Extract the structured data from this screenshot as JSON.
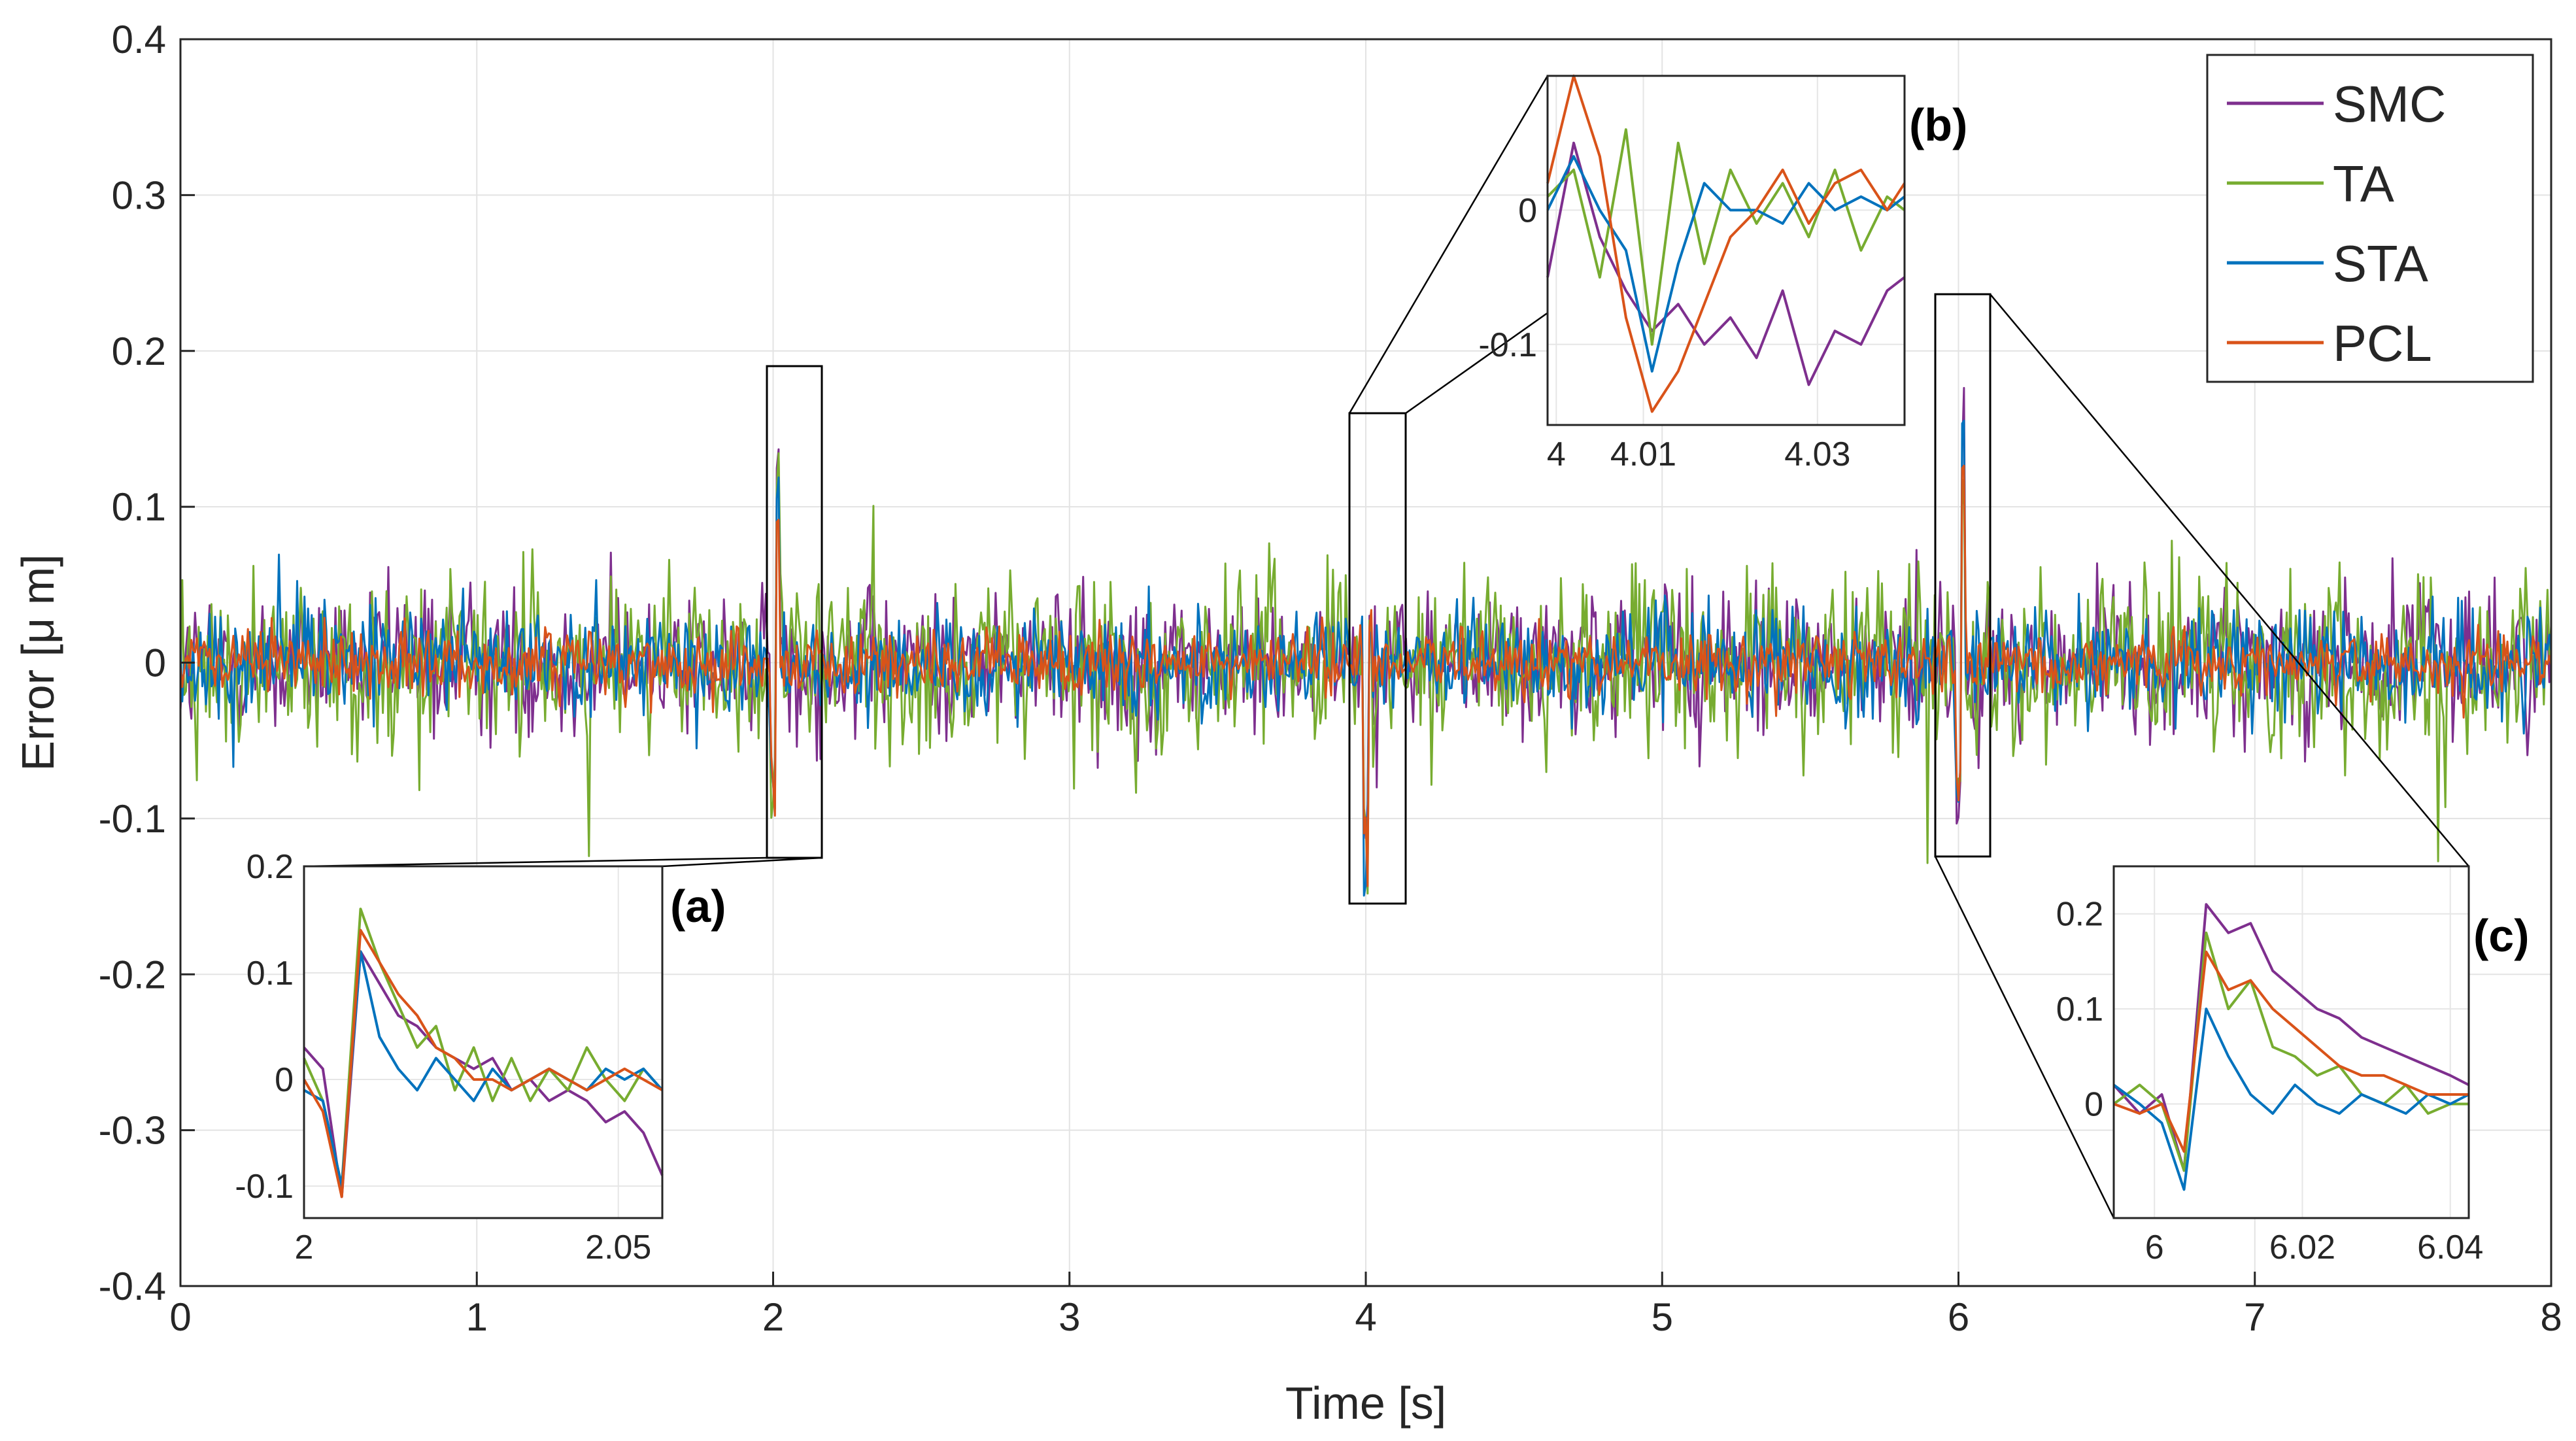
{
  "chart_data": {
    "type": "line",
    "title": "",
    "xlabel": "Time [s]",
    "ylabel": "Error [μ m]",
    "xlim": [
      0,
      8
    ],
    "ylim": [
      -0.4,
      0.4
    ],
    "xticks": [
      "0",
      "1",
      "2",
      "3",
      "4",
      "5",
      "6",
      "7",
      "8"
    ],
    "yticks": [
      "-0.4",
      "-0.3",
      "-0.2",
      "-0.1",
      "0",
      "0.1",
      "0.2",
      "0.3",
      "0.4"
    ],
    "grid": true,
    "legend_position": "top-right",
    "series": [
      {
        "name": "SMC",
        "color": "#7e2f8e",
        "noise_amplitude": 0.05
      },
      {
        "name": "TA",
        "color": "#77ac30",
        "noise_amplitude": 0.06
      },
      {
        "name": "STA",
        "color": "#0072bd",
        "noise_amplitude": 0.035
      },
      {
        "name": "PCL",
        "color": "#d95319",
        "noise_amplitude": 0.022
      }
    ],
    "events": [
      {
        "t": 2,
        "peak": 0.17,
        "trough": -0.1
      },
      {
        "t": 4,
        "peak": 0.04,
        "trough": -0.15
      },
      {
        "t": 6,
        "peak": 0.21,
        "trough": -0.11
      }
    ],
    "insets": [
      {
        "label": "(a)",
        "xlim": [
          2,
          2.057
        ],
        "ylim": [
          -0.13,
          0.2
        ],
        "xticks": [
          "2",
          "2.05"
        ],
        "yticks": [
          "0.2",
          "0.1",
          "0",
          "-0.1"
        ],
        "series": [
          {
            "name": "SMC",
            "x": [
              2.0,
              2.003,
              2.006,
              2.009,
              2.012,
              2.015,
              2.018,
              2.021,
              2.024,
              2.027,
              2.03,
              2.033,
              2.036,
              2.039,
              2.042,
              2.045,
              2.048,
              2.051,
              2.054,
              2.057
            ],
            "y": [
              0.03,
              0.01,
              -0.11,
              0.12,
              0.09,
              0.06,
              0.05,
              0.03,
              0.02,
              0.01,
              0.02,
              -0.01,
              0.0,
              -0.02,
              -0.01,
              -0.02,
              -0.04,
              -0.03,
              -0.05,
              -0.09
            ]
          },
          {
            "name": "TA",
            "x": [
              2.0,
              2.003,
              2.006,
              2.009,
              2.012,
              2.015,
              2.018,
              2.021,
              2.024,
              2.027,
              2.03,
              2.033,
              2.036,
              2.039,
              2.042,
              2.045,
              2.048,
              2.051,
              2.054,
              2.057
            ],
            "y": [
              0.02,
              -0.02,
              -0.1,
              0.16,
              0.11,
              0.07,
              0.03,
              0.05,
              -0.01,
              0.03,
              -0.02,
              0.02,
              -0.02,
              0.01,
              -0.01,
              0.03,
              0.0,
              -0.02,
              0.01,
              -0.01
            ]
          },
          {
            "name": "STA",
            "x": [
              2.0,
              2.003,
              2.006,
              2.009,
              2.012,
              2.015,
              2.018,
              2.021,
              2.024,
              2.027,
              2.03,
              2.033,
              2.036,
              2.039,
              2.042,
              2.045,
              2.048,
              2.051,
              2.054,
              2.057
            ],
            "y": [
              -0.01,
              -0.02,
              -0.1,
              0.12,
              0.04,
              0.01,
              -0.01,
              0.02,
              0.0,
              -0.02,
              0.01,
              -0.01,
              0.0,
              0.01,
              0.0,
              -0.01,
              0.01,
              0.0,
              0.01,
              -0.01
            ]
          },
          {
            "name": "PCL",
            "x": [
              2.0,
              2.003,
              2.006,
              2.009,
              2.012,
              2.015,
              2.018,
              2.021,
              2.024,
              2.027,
              2.03,
              2.033,
              2.036,
              2.039,
              2.042,
              2.045,
              2.048,
              2.051,
              2.054,
              2.057
            ],
            "y": [
              0.0,
              -0.03,
              -0.11,
              0.14,
              0.11,
              0.08,
              0.06,
              0.03,
              0.02,
              0.0,
              0.0,
              -0.01,
              0.0,
              0.01,
              0.0,
              -0.01,
              0.0,
              0.01,
              0.0,
              -0.01
            ]
          }
        ]
      },
      {
        "label": "(b)",
        "xlim": [
          3.999,
          4.04
        ],
        "ylim": [
          -0.16,
          0.1
        ],
        "xticks": [
          "4",
          "4.01",
          "4.03"
        ],
        "yticks": [
          "0",
          "-0.1"
        ],
        "series": [
          {
            "name": "SMC",
            "x": [
              3.999,
              4.002,
              4.005,
              4.008,
              4.011,
              4.014,
              4.017,
              4.02,
              4.023,
              4.026,
              4.029,
              4.032,
              4.035,
              4.038,
              4.04
            ],
            "y": [
              -0.05,
              0.05,
              -0.02,
              -0.06,
              -0.09,
              -0.07,
              -0.1,
              -0.08,
              -0.11,
              -0.06,
              -0.13,
              -0.09,
              -0.1,
              -0.06,
              -0.05
            ]
          },
          {
            "name": "TA",
            "x": [
              3.999,
              4.002,
              4.005,
              4.008,
              4.011,
              4.014,
              4.017,
              4.02,
              4.023,
              4.026,
              4.029,
              4.032,
              4.035,
              4.038,
              4.04
            ],
            "y": [
              0.01,
              0.03,
              -0.05,
              0.06,
              -0.1,
              0.05,
              -0.04,
              0.03,
              -0.01,
              0.02,
              -0.02,
              0.03,
              -0.03,
              0.01,
              0.0
            ]
          },
          {
            "name": "STA",
            "x": [
              3.999,
              4.002,
              4.005,
              4.008,
              4.011,
              4.014,
              4.017,
              4.02,
              4.023,
              4.026,
              4.029,
              4.032,
              4.035,
              4.038,
              4.04
            ],
            "y": [
              0.0,
              0.04,
              0.0,
              -0.03,
              -0.12,
              -0.04,
              0.02,
              0.0,
              0.0,
              -0.01,
              0.02,
              0.0,
              0.01,
              0.0,
              0.01
            ]
          },
          {
            "name": "PCL",
            "x": [
              3.999,
              4.002,
              4.005,
              4.008,
              4.011,
              4.014,
              4.017,
              4.02,
              4.023,
              4.026,
              4.029,
              4.032,
              4.035,
              4.038,
              4.04
            ],
            "y": [
              0.02,
              0.1,
              0.04,
              -0.08,
              -0.15,
              -0.12,
              -0.07,
              -0.02,
              0.0,
              0.03,
              -0.01,
              0.02,
              0.03,
              0.0,
              0.02
            ]
          }
        ]
      },
      {
        "label": "(c)",
        "xlim": [
          5.9945,
          6.0425
        ],
        "ylim": [
          -0.12,
          0.25
        ],
        "xticks": [
          "6",
          "6.02",
          "6.04"
        ],
        "yticks": [
          "0.2",
          "0.1",
          "0"
        ],
        "series": [
          {
            "name": "SMC",
            "x": [
              5.9945,
              5.998,
              6.001,
              6.004,
              6.007,
              6.01,
              6.013,
              6.016,
              6.019,
              6.022,
              6.025,
              6.028,
              6.031,
              6.034,
              6.037,
              6.04,
              6.0425
            ],
            "y": [
              0.02,
              -0.01,
              0.01,
              -0.07,
              0.21,
              0.18,
              0.19,
              0.14,
              0.12,
              0.1,
              0.09,
              0.07,
              0.06,
              0.05,
              0.04,
              0.03,
              0.02
            ]
          },
          {
            "name": "TA",
            "x": [
              5.9945,
              5.998,
              6.001,
              6.004,
              6.007,
              6.01,
              6.013,
              6.016,
              6.019,
              6.022,
              6.025,
              6.028,
              6.031,
              6.034,
              6.037,
              6.04,
              6.0425
            ],
            "y": [
              0.0,
              0.02,
              0.0,
              -0.07,
              0.18,
              0.1,
              0.13,
              0.06,
              0.05,
              0.03,
              0.04,
              0.01,
              0.0,
              0.02,
              -0.01,
              0.0,
              0.0
            ]
          },
          {
            "name": "STA",
            "x": [
              5.9945,
              5.998,
              6.001,
              6.004,
              6.007,
              6.01,
              6.013,
              6.016,
              6.019,
              6.022,
              6.025,
              6.028,
              6.031,
              6.034,
              6.037,
              6.04,
              6.0425
            ],
            "y": [
              0.02,
              0.0,
              -0.02,
              -0.09,
              0.1,
              0.05,
              0.01,
              -0.01,
              0.02,
              0.0,
              -0.01,
              0.01,
              0.0,
              -0.01,
              0.01,
              0.0,
              0.01
            ]
          },
          {
            "name": "PCL",
            "x": [
              5.9945,
              5.998,
              6.001,
              6.004,
              6.007,
              6.01,
              6.013,
              6.016,
              6.019,
              6.022,
              6.025,
              6.028,
              6.031,
              6.034,
              6.037,
              6.04,
              6.0425
            ],
            "y": [
              0.0,
              -0.01,
              0.0,
              -0.05,
              0.16,
              0.12,
              0.13,
              0.1,
              0.08,
              0.06,
              0.04,
              0.03,
              0.03,
              0.02,
              0.01,
              0.01,
              0.01
            ]
          }
        ]
      }
    ]
  }
}
